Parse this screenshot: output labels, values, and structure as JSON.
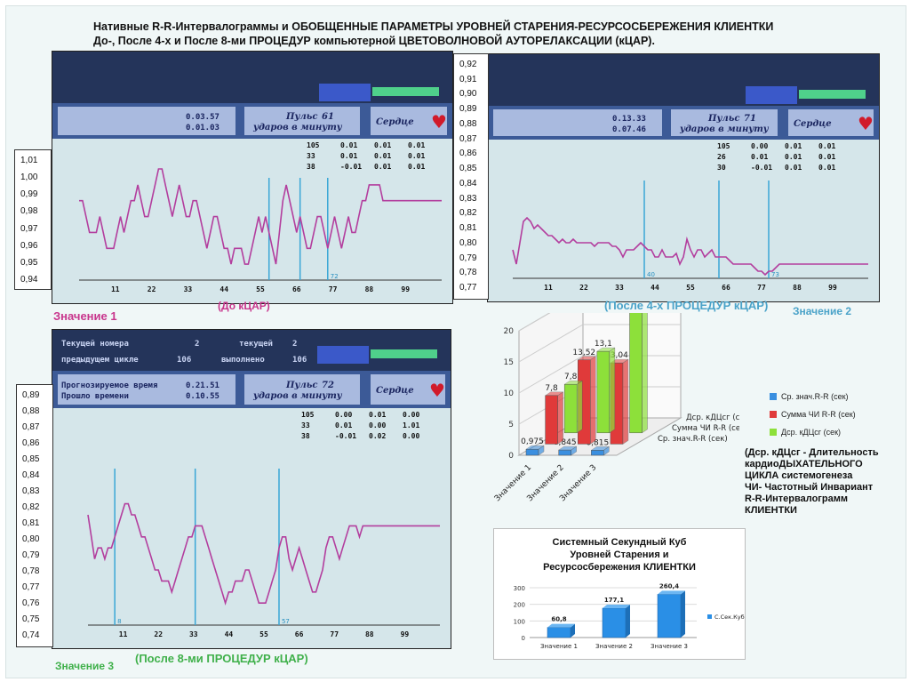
{
  "title": {
    "line1": "Нативные R-R-Интервалограммы и ОБОБЩЕННЫЕ ПАРАМЕТРЫ УРОВНЕЙ СТАРЕНИЯ-РЕСУРСОСБЕРЕЖЕНИЯ КЛИЕНТКИ",
    "line2": "До-, После 4-х и После 8-ми ПРОЦЕДУР компьютерной ЦВЕТОВОЛНОВОЙ АУТОРЕЛАКСАЦИИ (кЦАР)."
  },
  "captions": {
    "panel1_label": "Значение 1",
    "panel1_stage": "(До кЦАР)",
    "panel2_stage": "(После 4-х ПРОЦЕДУР кЦАР)",
    "panel2_label": "Значение 2",
    "panel3_label": "Значение 3",
    "panel3_stage": "(После 8-ми ПРОЦЕДУР кЦАР)"
  },
  "colors": {
    "trace": "#b33e9e",
    "marker": "#3aa7d6",
    "screen_top": "#24345a",
    "screen_plot": "#d5e6ea"
  },
  "panels": [
    {
      "hud": {
        "time_row1": "0.03.57",
        "time_row2": "0.01.03",
        "pulse_label": "Пульс",
        "pulse_value": "61",
        "pulse_unit": "ударов в минуту",
        "heart_label": "Сердце"
      },
      "stats": [
        [
          "105",
          "0.01",
          "0.01",
          "0.01"
        ],
        [
          "33",
          "0.01",
          "0.01",
          "0.01"
        ],
        [
          "38",
          "-0.01",
          "0.01",
          "0.01"
        ]
      ],
      "xticks": [
        "11",
        "22",
        "33",
        "44",
        "55",
        "66",
        "77",
        "88",
        "99"
      ],
      "markers": [
        "",
        "",
        "72"
      ]
    },
    {
      "hud": {
        "time_row1": "0.13.33",
        "time_row2": "0.07.46",
        "pulse_label": "Пульс",
        "pulse_value": "71",
        "pulse_unit": "ударов в минуту",
        "heart_label": "Сердце"
      },
      "stats": [
        [
          "105",
          "0.00",
          "0.01",
          "0.01"
        ],
        [
          "26",
          "0.01",
          "0.01",
          "0.01"
        ],
        [
          "30",
          "-0.01",
          "0.01",
          "0.01"
        ]
      ],
      "xticks": [
        "11",
        "22",
        "33",
        "44",
        "55",
        "66",
        "77",
        "88",
        "99"
      ],
      "markers": [
        "40",
        "",
        "73"
      ]
    },
    {
      "hud": {
        "row_a1": "Текущей номера",
        "row_a2": "2",
        "row_a3": "текущей",
        "row_a4": "2",
        "row_b1": "предыдущем цикле",
        "row_b2": "106",
        "row_b3": "выполнено",
        "row_b4": "106",
        "time_row1_label": "Прогнозируемое время",
        "time_row1": "0.21.51",
        "time_row2_label": "Прошло времени",
        "time_row2": "0.10.55",
        "pulse_label": "Пульс",
        "pulse_value": "72",
        "pulse_unit": "ударов в минуту",
        "heart_label": "Сердце"
      },
      "stats": [
        [
          "105",
          "0.00",
          "0.01",
          "0.00"
        ],
        [
          "33",
          "0.01",
          "0.00",
          "1.01"
        ],
        [
          "38",
          "-0.01",
          "0.02",
          "0.00"
        ]
      ],
      "xticks": [
        "11",
        "22",
        "33",
        "44",
        "55",
        "66",
        "77",
        "88",
        "99"
      ],
      "markers": [
        "8",
        "",
        "57"
      ]
    }
  ],
  "axis_labels": {
    "panel1": [
      "1,01",
      "1,00",
      "0,99",
      "0,98",
      "0,97",
      "0,96",
      "0,95",
      "0,94"
    ],
    "panel2": [
      "0,92",
      "0,91",
      "0,90",
      "0,89",
      "0,88",
      "0,87",
      "0,86",
      "0,85",
      "0,84",
      "0,83",
      "0,82",
      "0,81",
      "0,80",
      "0,79",
      "0,78",
      "0,77"
    ],
    "panel3": [
      "0,89",
      "0,88",
      "0,87",
      "0,86",
      "0,85",
      "0,84",
      "0,83",
      "0,82",
      "0,81",
      "0,80",
      "0,79",
      "0,78",
      "0,77",
      "0,76",
      "0,75",
      "0,74"
    ]
  },
  "chart_data": [
    {
      "type": "line",
      "ylim": [
        0.94,
        1.01
      ],
      "x": [
        0,
        1,
        2,
        3,
        4,
        5,
        6,
        7,
        8,
        9,
        10,
        11,
        12,
        13,
        14,
        15,
        16,
        17,
        18,
        19,
        20,
        21,
        22,
        23,
        24,
        25,
        26,
        27,
        28,
        29,
        30,
        31,
        32,
        33,
        34,
        35,
        36,
        37,
        38,
        39,
        40,
        41,
        42,
        43,
        44,
        45,
        46,
        47,
        48,
        49,
        50,
        51,
        52,
        53,
        54,
        55,
        56,
        57,
        58,
        59,
        60,
        61,
        62,
        63,
        64,
        65,
        66,
        67,
        68,
        69,
        70,
        71,
        72,
        73,
        74,
        75,
        76,
        77,
        78,
        79,
        80,
        81,
        82,
        83,
        84,
        85,
        86,
        87,
        88,
        89,
        90,
        91,
        92,
        93,
        94,
        95,
        96,
        97,
        98,
        99,
        100,
        101,
        102,
        103,
        104,
        105
      ],
      "y": [
        0.99,
        0.99,
        0.98,
        0.97,
        0.97,
        0.97,
        0.98,
        0.97,
        0.96,
        0.96,
        0.96,
        0.97,
        0.98,
        0.97,
        0.98,
        0.99,
        0.99,
        1.0,
        0.99,
        0.98,
        0.98,
        0.99,
        1.0,
        1.01,
        1.01,
        1.0,
        0.99,
        0.98,
        0.99,
        1.0,
        0.99,
        0.98,
        0.98,
        0.99,
        0.99,
        0.98,
        0.97,
        0.96,
        0.97,
        0.98,
        0.98,
        0.97,
        0.96,
        0.96,
        0.95,
        0.96,
        0.96,
        0.96,
        0.95,
        0.95,
        0.96,
        0.97,
        0.98,
        0.97,
        0.98,
        0.97,
        0.96,
        0.95,
        0.97,
        0.99,
        1.0,
        0.99,
        0.98,
        0.97,
        0.98,
        0.97,
        0.96,
        0.96,
        0.97,
        0.98,
        0.98,
        0.97,
        0.96,
        0.97,
        0.98,
        0.97,
        0.96,
        0.97,
        0.98,
        0.97,
        0.97,
        0.98,
        0.99,
        0.99,
        1.0,
        1.0,
        1.0,
        1.0,
        0.99,
        0.99,
        0.99,
        0.99,
        0.99,
        0.99,
        0.99,
        0.99,
        0.99,
        0.99,
        0.99,
        0.99,
        0.99,
        0.99,
        0.99,
        0.99,
        0.99,
        0.99
      ],
      "markers_x": [
        55,
        64,
        72
      ]
    },
    {
      "type": "line",
      "ylim": [
        0.77,
        0.92
      ],
      "x": [
        0,
        1,
        2,
        3,
        4,
        5,
        6,
        7,
        8,
        9,
        10,
        11,
        12,
        13,
        14,
        15,
        16,
        17,
        18,
        19,
        20,
        21,
        22,
        23,
        24,
        25,
        26,
        27,
        28,
        29,
        30,
        31,
        32,
        33,
        34,
        35,
        36,
        37,
        38,
        39,
        40,
        41,
        42,
        43,
        44,
        45,
        46,
        47,
        48,
        49,
        50,
        51,
        52,
        53,
        54,
        55,
        56,
        57,
        58,
        59,
        60,
        61,
        62,
        63,
        64,
        65,
        66,
        67,
        68,
        69,
        70,
        71,
        72,
        73,
        74,
        75,
        76,
        77,
        78,
        79,
        80,
        81,
        82,
        83,
        84,
        85,
        86,
        87,
        88,
        89,
        90,
        91,
        92,
        93,
        94,
        95,
        96,
        97,
        98,
        99,
        100
      ],
      "y": [
        0.81,
        0.79,
        0.82,
        0.85,
        0.855,
        0.85,
        0.84,
        0.845,
        0.84,
        0.835,
        0.83,
        0.83,
        0.825,
        0.82,
        0.825,
        0.82,
        0.82,
        0.825,
        0.82,
        0.82,
        0.82,
        0.82,
        0.82,
        0.815,
        0.82,
        0.82,
        0.82,
        0.82,
        0.815,
        0.815,
        0.81,
        0.8,
        0.81,
        0.81,
        0.81,
        0.815,
        0.82,
        0.815,
        0.81,
        0.81,
        0.8,
        0.8,
        0.81,
        0.8,
        0.8,
        0.8,
        0.805,
        0.79,
        0.8,
        0.825,
        0.81,
        0.8,
        0.81,
        0.81,
        0.8,
        0.805,
        0.81,
        0.8,
        0.8,
        0.8,
        0.8,
        0.795,
        0.79,
        0.79,
        0.79,
        0.79,
        0.79,
        0.79,
        0.785,
        0.78,
        0.78,
        0.775,
        0.78,
        0.78,
        0.785,
        0.79,
        0.79,
        0.79,
        0.79,
        0.79,
        0.79,
        0.79,
        0.79,
        0.79,
        0.79,
        0.79,
        0.79,
        0.79,
        0.79,
        0.79,
        0.79,
        0.79,
        0.79,
        0.79,
        0.79,
        0.79,
        0.79,
        0.79,
        0.79,
        0.79,
        0.79
      ],
      "markers_x": [
        37,
        58,
        72
      ]
    },
    {
      "type": "line",
      "ylim": [
        0.74,
        0.89
      ],
      "x": [
        0,
        1,
        2,
        3,
        4,
        5,
        6,
        7,
        8,
        9,
        10,
        11,
        12,
        13,
        14,
        15,
        16,
        17,
        18,
        19,
        20,
        21,
        22,
        23,
        24,
        25,
        26,
        27,
        28,
        29,
        30,
        31,
        32,
        33,
        34,
        35,
        36,
        37,
        38,
        39,
        40,
        41,
        42,
        43,
        44,
        45,
        46,
        47,
        48,
        49,
        50,
        51,
        52,
        53,
        54,
        55,
        56,
        57,
        58,
        59,
        60,
        61,
        62,
        63,
        64,
        65,
        66,
        67,
        68,
        69,
        70,
        71,
        72,
        73,
        74,
        75,
        76,
        77,
        78,
        79,
        80,
        81,
        82,
        83,
        84,
        85,
        86,
        87,
        88,
        89,
        90,
        91,
        92,
        93,
        94,
        95,
        96,
        97,
        98,
        99,
        100,
        101,
        102,
        103,
        104,
        105
      ],
      "y": [
        0.84,
        0.82,
        0.8,
        0.81,
        0.81,
        0.8,
        0.81,
        0.81,
        0.82,
        0.83,
        0.84,
        0.85,
        0.85,
        0.84,
        0.84,
        0.83,
        0.82,
        0.82,
        0.81,
        0.8,
        0.79,
        0.79,
        0.78,
        0.78,
        0.78,
        0.77,
        0.78,
        0.79,
        0.8,
        0.81,
        0.82,
        0.82,
        0.83,
        0.83,
        0.83,
        0.82,
        0.81,
        0.8,
        0.79,
        0.78,
        0.77,
        0.76,
        0.77,
        0.77,
        0.78,
        0.78,
        0.78,
        0.79,
        0.79,
        0.78,
        0.77,
        0.76,
        0.76,
        0.76,
        0.77,
        0.78,
        0.79,
        0.81,
        0.82,
        0.82,
        0.8,
        0.79,
        0.8,
        0.81,
        0.8,
        0.79,
        0.78,
        0.77,
        0.77,
        0.78,
        0.79,
        0.81,
        0.82,
        0.82,
        0.81,
        0.8,
        0.81,
        0.82,
        0.83,
        0.83,
        0.83,
        0.82,
        0.83,
        0.83,
        0.83,
        0.83,
        0.83,
        0.83,
        0.83,
        0.83,
        0.83,
        0.83,
        0.83,
        0.83,
        0.83,
        0.83,
        0.83,
        0.83,
        0.83,
        0.83,
        0.83,
        0.83,
        0.83,
        0.83,
        0.83,
        0.83
      ],
      "markers_x": [
        8,
        32,
        57
      ]
    },
    {
      "type": "bar",
      "categories": [
        "Значение 1",
        "Значение 2",
        "Значение 3"
      ],
      "ylim": [
        0,
        20
      ],
      "yticks": [
        "0",
        "5",
        "10",
        "15",
        "20"
      ],
      "depth_labels": [
        "Дср. кДЦсг (сек)",
        "Сумма ЧИ R-R (сек)",
        "Ср. знач.R-R (сек)"
      ],
      "series": [
        {
          "name": "Ср. знач.R-R (сек)",
          "color": "#3a8fe0",
          "values": [
            0.975,
            0.845,
            0.815
          ],
          "labels": [
            "0,975",
            "0,845",
            "0,815"
          ]
        },
        {
          "name": "Сумма ЧИ R-R (сек)",
          "color": "#e03a3a",
          "values": [
            7.8,
            13.52,
            13.04
          ],
          "labels": [
            "7,8",
            "13,52",
            "13,04"
          ]
        },
        {
          "name": "Дср. кДЦсг (сек)",
          "color": "#8de03a",
          "values": [
            7.8,
            13.1,
            19.97
          ],
          "labels": [
            "7,8",
            "13,1",
            "19,97"
          ]
        }
      ]
    },
    {
      "type": "bar",
      "title_line1": "Системный Секундный Куб",
      "title_line2": "Уровней Старения и",
      "title_line3": "Ресурсосбережения КЛИЕНТКИ",
      "categories": [
        "Значение 1",
        "Значение 2",
        "Значение 3"
      ],
      "ylim": [
        0,
        300
      ],
      "yticks": [
        "0",
        "100",
        "200",
        "300"
      ],
      "series": [
        {
          "name": "С.Сек.Куб",
          "color": "#2a8fe6",
          "values": [
            60.8,
            177.1,
            260.4
          ],
          "labels": [
            "60,8",
            "177,1",
            "260,4"
          ]
        }
      ]
    }
  ],
  "note": {
    "line1": "(Дср. кДЦсг - Длительность",
    "line2": "кардиоДЫХАТЕЛЬНОГО",
    "line3": "ЦИКЛА системогенеза",
    "line4": "ЧИ- Частотный Инвариант",
    "line5": "R-R-Интервалограмм",
    "line6": "КЛИЕНТКИ"
  }
}
